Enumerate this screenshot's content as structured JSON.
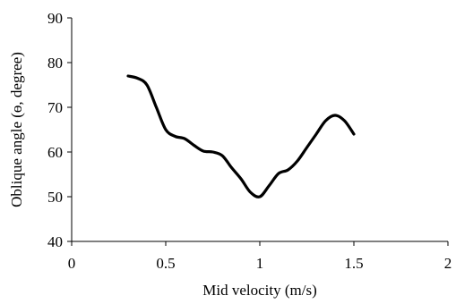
{
  "chart_data": {
    "type": "line",
    "title": "",
    "xlabel": "Mid velocity (m/s)",
    "ylabel": "Oblique angle (ɵ, degree)",
    "xlim": [
      0,
      2
    ],
    "ylim": [
      40,
      90
    ],
    "xticks": [
      0,
      0.5,
      1,
      1.5,
      2
    ],
    "xtick_labels": [
      "0",
      "0.5",
      "1",
      "1.5",
      "2"
    ],
    "yticks": [
      40,
      50,
      60,
      70,
      80,
      90
    ],
    "ytick_labels": [
      "40",
      "50",
      "60",
      "70",
      "80",
      "90"
    ],
    "grid": false,
    "legend": "none",
    "line_color": "#000000",
    "series": [
      {
        "x": [
          0.3,
          0.35,
          0.4,
          0.45,
          0.5,
          0.55,
          0.6,
          0.65,
          0.7,
          0.75,
          0.8,
          0.85,
          0.9,
          0.95,
          1.0,
          1.05,
          1.1,
          1.15,
          1.2,
          1.25,
          1.3,
          1.35,
          1.4,
          1.45,
          1.5
        ],
        "values": [
          77,
          76.5,
          75,
          70,
          65,
          63.5,
          63,
          61.5,
          60.2,
          60,
          59.2,
          56.5,
          54,
          51,
          50,
          52.5,
          55.2,
          56,
          58,
          61,
          64,
          67,
          68.2,
          67,
          64
        ]
      }
    ]
  }
}
